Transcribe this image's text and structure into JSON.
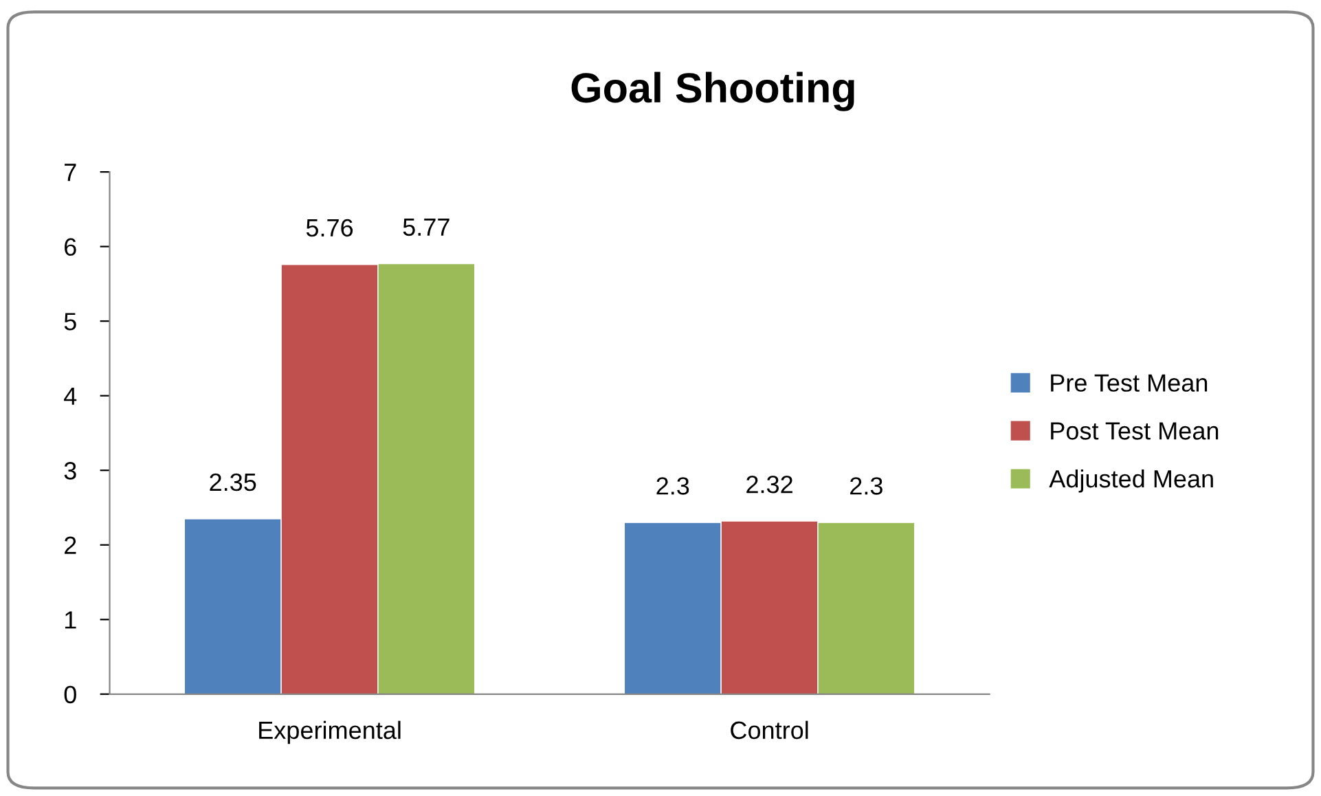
{
  "chart_data": {
    "type": "bar",
    "title": "Goal Shooting",
    "categories": [
      "Experimental",
      "Control"
    ],
    "series": [
      {
        "name": "Pre Test Mean",
        "color": "#4f81bd",
        "values": [
          2.35,
          2.3
        ]
      },
      {
        "name": "Post Test Mean",
        "color": "#c0504d",
        "values": [
          5.76,
          2.32
        ]
      },
      {
        "name": "Adjusted Mean",
        "color": "#9bbb59",
        "values": [
          5.77,
          2.3
        ]
      }
    ],
    "ylim": [
      0,
      7
    ],
    "yticks": [
      0,
      1,
      2,
      3,
      4,
      5,
      6,
      7
    ],
    "grid": false,
    "legend": "right",
    "data_labels": true
  }
}
